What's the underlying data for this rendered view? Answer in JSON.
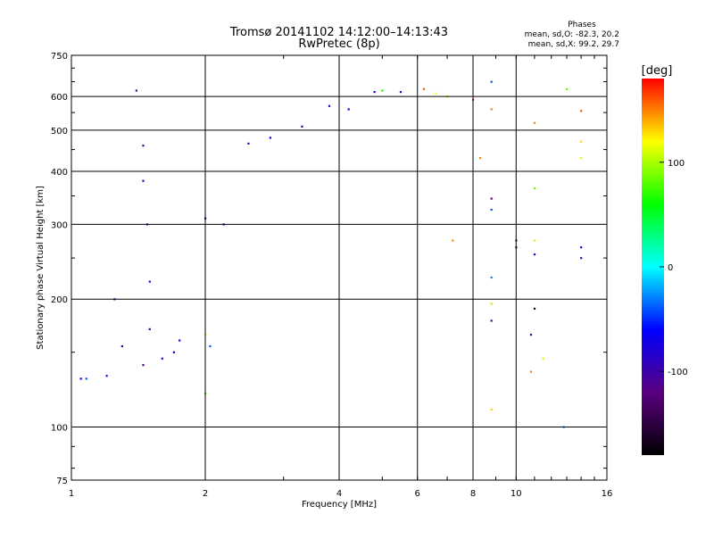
{
  "chart_data": {
    "type": "scatter",
    "title": "Tromsø 20141102 14:12:00–14:13:43",
    "subtitle": "RwPretec (8p)",
    "xlabel": "Frequency [MHz]",
    "ylabel": "Stationary phase Virtual Height [km]",
    "x_scale": "log",
    "y_scale": "log",
    "xlim": [
      1,
      16
    ],
    "ylim": [
      75,
      750
    ],
    "x_ticks": [
      1,
      2,
      4,
      6,
      8,
      10,
      16
    ],
    "x_tick_labels": [
      "1",
      "2",
      "4",
      "6",
      "8",
      "10",
      "16"
    ],
    "y_ticks": [
      75,
      100,
      200,
      300,
      400,
      500,
      600,
      750
    ],
    "y_tick_labels": [
      "75",
      "100",
      "200",
      "300",
      "400",
      "500",
      "600",
      "750"
    ],
    "grid": true,
    "stats": {
      "title": "Phases",
      "line_o": "mean, sd,O: -82.3, 20.2",
      "line_x": "mean, sd,X:  99.2, 29.7"
    },
    "colorbar": {
      "label": "[deg]",
      "range": [
        -180,
        180
      ],
      "ticks": [
        100,
        0,
        -100
      ],
      "tick_labels": [
        "100",
        "0",
        "-100"
      ],
      "stops": [
        "#000000",
        "#5a0080",
        "#0000ff",
        "#00ffff",
        "#00ff00",
        "#ffff00",
        "#ff0000"
      ]
    },
    "series": [
      {
        "points": [
          [
            1.05,
            130,
            -60
          ],
          [
            1.08,
            130,
            -40
          ],
          [
            1.2,
            132,
            -90
          ],
          [
            1.25,
            200,
            -100
          ],
          [
            1.3,
            155,
            -95
          ],
          [
            1.4,
            620,
            -110
          ],
          [
            1.45,
            460,
            -105
          ],
          [
            1.45,
            380,
            -100
          ],
          [
            1.48,
            300,
            -95
          ],
          [
            1.5,
            220,
            -90
          ],
          [
            1.5,
            170,
            -100
          ],
          [
            1.45,
            140,
            -110
          ],
          [
            1.6,
            145,
            -80
          ],
          [
            1.7,
            150,
            -75
          ],
          [
            1.75,
            160,
            -60
          ],
          [
            2.0,
            120,
            80
          ],
          [
            2.0,
            165,
            120
          ],
          [
            2.05,
            155,
            -40
          ],
          [
            2.0,
            310,
            -100
          ],
          [
            2.2,
            300,
            -70
          ],
          [
            2.5,
            465,
            -80
          ],
          [
            2.8,
            480,
            -70
          ],
          [
            3.3,
            510,
            -80
          ],
          [
            3.8,
            570,
            -90
          ],
          [
            4.2,
            560,
            -70
          ],
          [
            4.8,
            615,
            -85
          ],
          [
            5.0,
            620,
            60
          ],
          [
            5.5,
            615,
            -100
          ],
          [
            6.2,
            625,
            160
          ],
          [
            6.6,
            610,
            120
          ],
          [
            7.0,
            600,
            100
          ],
          [
            8.0,
            590,
            170
          ],
          [
            8.8,
            650,
            -40
          ],
          [
            8.8,
            560,
            150
          ],
          [
            8.8,
            345,
            -120
          ],
          [
            8.8,
            325,
            -40
          ],
          [
            8.8,
            225,
            -30
          ],
          [
            8.8,
            195,
            100
          ],
          [
            8.8,
            178,
            -100
          ],
          [
            8.8,
            110,
            130
          ],
          [
            8.3,
            430,
            150
          ],
          [
            7.2,
            275,
            150
          ],
          [
            10.0,
            275,
            -110
          ],
          [
            10.0,
            265,
            -120
          ],
          [
            11.0,
            520,
            150
          ],
          [
            11.0,
            365,
            80
          ],
          [
            11.0,
            275,
            110
          ],
          [
            11.0,
            255,
            -80
          ],
          [
            10.8,
            165,
            -100
          ],
          [
            11.0,
            190,
            -160
          ],
          [
            10.8,
            135,
            150
          ],
          [
            11.5,
            145,
            110
          ],
          [
            12.8,
            100,
            -30
          ],
          [
            13.0,
            625,
            80
          ],
          [
            14.0,
            555,
            160
          ],
          [
            14.0,
            470,
            130
          ],
          [
            14.0,
            430,
            110
          ],
          [
            14.0,
            265,
            -80
          ],
          [
            14.0,
            250,
            -100
          ]
        ]
      }
    ]
  }
}
